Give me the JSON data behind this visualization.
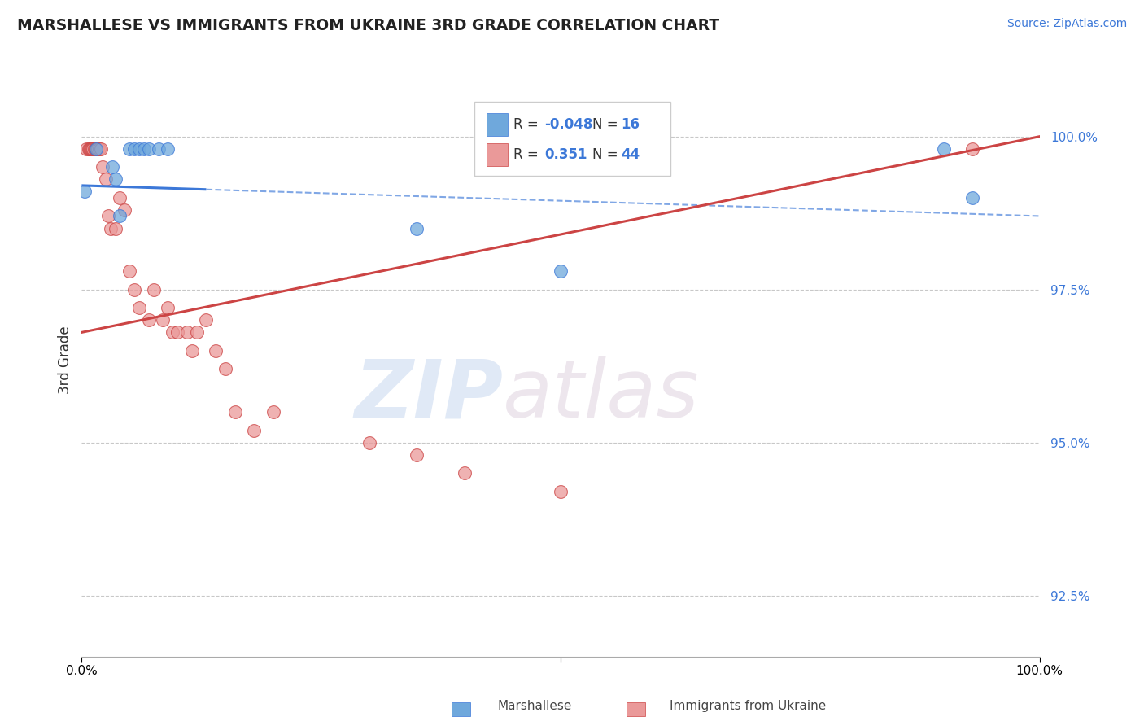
{
  "title": "MARSHALLESE VS IMMIGRANTS FROM UKRAINE 3RD GRADE CORRELATION CHART",
  "source": "Source: ZipAtlas.com",
  "ylabel": "3rd Grade",
  "r_blue": -0.048,
  "n_blue": 16,
  "r_pink": 0.351,
  "n_pink": 44,
  "color_blue": "#6fa8dc",
  "color_pink": "#ea9999",
  "color_trend_blue": "#3c78d8",
  "color_trend_pink": "#cc4444",
  "legend_label_blue": "Marshallese",
  "legend_label_pink": "Immigrants from Ukraine",
  "blue_x": [
    0.3,
    1.5,
    3.2,
    3.5,
    4.0,
    5.0,
    5.5,
    6.0,
    6.5,
    7.0,
    8.0,
    9.0,
    35.0,
    50.0,
    90.0,
    93.0
  ],
  "blue_y": [
    99.1,
    99.8,
    99.5,
    99.3,
    98.7,
    99.8,
    99.8,
    99.8,
    99.8,
    99.8,
    99.8,
    99.8,
    98.5,
    97.8,
    99.8,
    99.0
  ],
  "pink_x": [
    0.5,
    0.7,
    0.8,
    0.9,
    1.0,
    1.1,
    1.2,
    1.3,
    1.4,
    1.5,
    1.6,
    1.7,
    1.8,
    2.0,
    2.2,
    2.5,
    2.8,
    3.0,
    3.5,
    4.0,
    4.5,
    5.0,
    5.5,
    6.0,
    7.0,
    7.5,
    8.5,
    9.0,
    9.5,
    10.0,
    11.0,
    11.5,
    12.0,
    13.0,
    14.0,
    15.0,
    16.0,
    18.0,
    20.0,
    30.0,
    35.0,
    40.0,
    50.0,
    93.0
  ],
  "pink_y": [
    99.8,
    99.8,
    99.8,
    99.8,
    99.8,
    99.8,
    99.8,
    99.8,
    99.8,
    99.8,
    99.8,
    99.8,
    99.8,
    99.8,
    99.5,
    99.3,
    98.7,
    98.5,
    98.5,
    99.0,
    98.8,
    97.8,
    97.5,
    97.2,
    97.0,
    97.5,
    97.0,
    97.2,
    96.8,
    96.8,
    96.8,
    96.5,
    96.8,
    97.0,
    96.5,
    96.2,
    95.5,
    95.2,
    95.5,
    95.0,
    94.8,
    94.5,
    94.2,
    99.8
  ],
  "xlim": [
    0.0,
    100.0
  ],
  "ylim": [
    91.5,
    101.2
  ],
  "yticks": [
    92.5,
    95.0,
    97.5,
    100.0
  ],
  "ytick_labels": [
    "92.5%",
    "95.0%",
    "97.5%",
    "100.0%"
  ],
  "blue_trend_y0": 99.2,
  "blue_trend_y100": 98.7,
  "pink_trend_y0": 96.8,
  "pink_trend_y100": 100.0,
  "blue_solid_cutoff": 13.0,
  "watermark_zip": "ZIP",
  "watermark_atlas": "atlas",
  "background_color": "#ffffff",
  "grid_color": "#c8c8c8"
}
